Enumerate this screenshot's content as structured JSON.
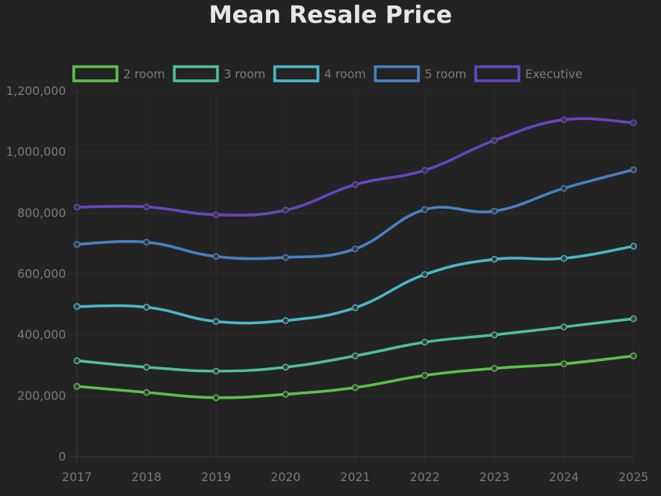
{
  "chart_data": {
    "type": "line",
    "title": "Mean Resale Price",
    "categories": [
      "2017",
      "2018",
      "2019",
      "2020",
      "2021",
      "2022",
      "2023",
      "2024",
      "2025"
    ],
    "ylim": [
      0,
      1200000
    ],
    "yticks": [
      0,
      200000,
      400000,
      600000,
      800000,
      1000000,
      1200000
    ],
    "ytick_labels": [
      "0",
      "200,000",
      "400,000",
      "600,000",
      "800,000",
      "1,000,000",
      "1,200,000"
    ],
    "grid": true,
    "legend_position": "top",
    "series": [
      {
        "name": "2 room",
        "color": "#5cc04b",
        "values": [
          231000,
          211000,
          194000,
          205000,
          227000,
          267000,
          290000,
          305000,
          331000
        ]
      },
      {
        "name": "3 room",
        "color": "#4fbf9a",
        "values": [
          315000,
          294000,
          281000,
          294000,
          331000,
          376000,
          400000,
          426000,
          453000
        ]
      },
      {
        "name": "4 room",
        "color": "#4bb7c7",
        "values": [
          493000,
          491000,
          444000,
          447000,
          489000,
          598000,
          648000,
          651000,
          691000
        ]
      },
      {
        "name": "5 room",
        "color": "#4a80c4",
        "values": [
          697000,
          704000,
          657000,
          654000,
          682000,
          811000,
          806000,
          881000,
          942000
        ]
      },
      {
        "name": "Executive",
        "color": "#6547c0",
        "values": [
          819000,
          820000,
          794000,
          809000,
          893000,
          940000,
          1038000,
          1106000,
          1096000
        ]
      }
    ]
  }
}
